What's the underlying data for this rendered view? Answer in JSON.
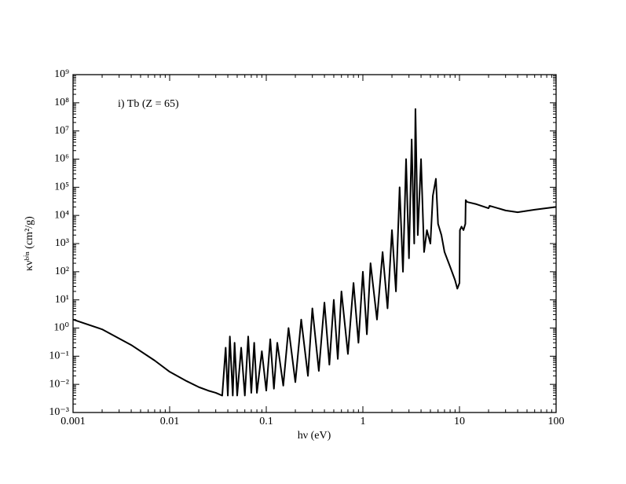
{
  "chart_data": {
    "type": "line",
    "annotation": "i) Tb (Z = 65)",
    "xlabel": "hν (eV)",
    "ylabel": "κνᵇⁱⁿ (cm²/g)",
    "xlog": true,
    "ylog": true,
    "xlim": [
      0.001,
      100
    ],
    "ylim": [
      0.001,
      1000000000
    ],
    "xticks": [
      0.001,
      0.01,
      0.1,
      1,
      10,
      100
    ],
    "yticks": [
      {
        "value": 0.001,
        "label": "10⁻³"
      },
      {
        "value": 0.01,
        "label": "10⁻²"
      },
      {
        "value": 0.1,
        "label": "10⁻¹"
      },
      {
        "value": 1,
        "label": "10⁰"
      },
      {
        "value": 10,
        "label": "10¹"
      },
      {
        "value": 100,
        "label": "10²"
      },
      {
        "value": 1000,
        "label": "10³"
      },
      {
        "value": 10000,
        "label": "10⁴"
      },
      {
        "value": 100000,
        "label": "10⁵"
      },
      {
        "value": 1000000,
        "label": "10⁶"
      },
      {
        "value": 10000000,
        "label": "10⁷"
      },
      {
        "value": 100000000,
        "label": "10⁸"
      },
      {
        "value": 1000000000,
        "label": "10⁹"
      }
    ],
    "x": [
      0.001,
      0.002,
      0.004,
      0.007,
      0.01,
      0.015,
      0.02,
      0.025,
      0.03,
      0.035,
      0.038,
      0.04,
      0.042,
      0.045,
      0.047,
      0.05,
      0.055,
      0.06,
      0.065,
      0.07,
      0.075,
      0.08,
      0.09,
      0.1,
      0.11,
      0.12,
      0.13,
      0.15,
      0.17,
      0.2,
      0.23,
      0.27,
      0.3,
      0.35,
      0.4,
      0.45,
      0.5,
      0.55,
      0.6,
      0.7,
      0.8,
      0.9,
      1,
      1.1,
      1.2,
      1.4,
      1.6,
      1.8,
      2,
      2.2,
      2.4,
      2.6,
      2.8,
      3,
      3.2,
      3.4,
      3.5,
      3.7,
      4,
      4.3,
      4.6,
      5,
      5.3,
      5.7,
      6,
      6.5,
      7,
      8,
      9,
      9.5,
      10,
      10.1,
      10.5,
      11,
      11.5,
      11.6,
      12,
      15,
      20,
      20.5,
      30,
      40,
      60,
      100
    ],
    "series": [
      {
        "color": "#000000",
        "values": [
          2,
          0.9,
          0.25,
          0.07,
          0.028,
          0.013,
          0.008,
          0.006,
          0.005,
          0.004,
          0.2,
          0.004,
          0.5,
          0.004,
          0.3,
          0.004,
          0.2,
          0.004,
          0.5,
          0.005,
          0.3,
          0.005,
          0.15,
          0.006,
          0.4,
          0.007,
          0.3,
          0.009,
          1,
          0.012,
          2,
          0.02,
          5,
          0.03,
          8,
          0.05,
          10,
          0.08,
          20,
          0.12,
          40,
          0.3,
          100,
          0.6,
          200,
          2,
          500,
          5,
          3000,
          20,
          100000,
          100,
          1000000,
          300,
          5000000,
          1000,
          60000000,
          2000,
          1000000,
          500,
          3000,
          1000,
          50000,
          200000,
          5000,
          2000,
          500,
          150,
          50,
          25,
          40,
          3000,
          4000,
          3000,
          5000,
          35000,
          30000,
          25000,
          18000,
          22000,
          15000,
          13000,
          16000,
          20000
        ]
      }
    ]
  }
}
